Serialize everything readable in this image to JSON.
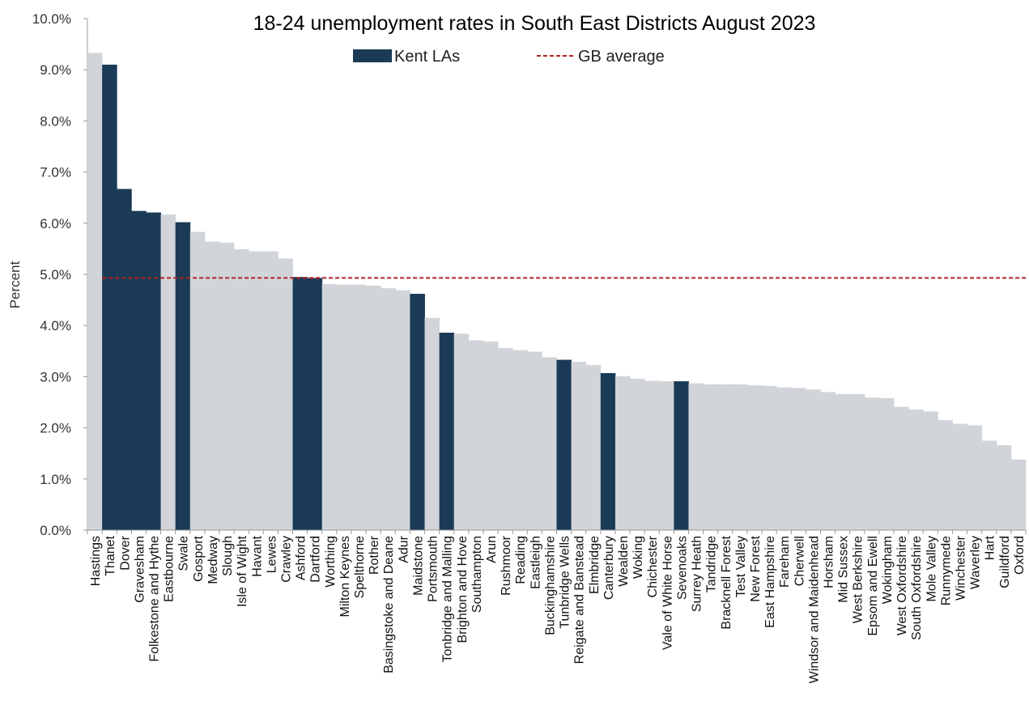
{
  "chart_data": {
    "type": "bar",
    "title": "18-24 unemployment rates in South East Districts August 2023",
    "ylabel": "Percent",
    "xlabel": "",
    "ylim": [
      0,
      10
    ],
    "yticks": [
      "0.0%",
      "1.0%",
      "2.0%",
      "3.0%",
      "4.0%",
      "5.0%",
      "6.0%",
      "7.0%",
      "8.0%",
      "9.0%",
      "10.0%"
    ],
    "legend": {
      "position": "top-center",
      "kent_label": "Kent LAs",
      "gb_label": "GB average"
    },
    "colors": {
      "other": "#d1d5d9",
      "kent": "#1a3a56",
      "gb_line": "#b22222"
    },
    "gb_average": 4.93,
    "categories": [
      "Hastings",
      "Thanet",
      "Dover",
      "Gravesham",
      "Folkestone and Hythe",
      "Eastbourne",
      "Swale",
      "Gosport",
      "Medway",
      "Slough",
      "Isle of Wight",
      "Havant",
      "Lewes",
      "Crawley",
      "Ashford",
      "Dartford",
      "Worthing",
      "Milton Keynes",
      "Spelthorne",
      "Rother",
      "Basingstoke and Deane",
      "Adur",
      "Maidstone",
      "Portsmouth",
      "Tonbridge and Malling",
      "Brighton and Hove",
      "Southampton",
      "Arun",
      "Rushmoor",
      "Reading",
      "Eastleigh",
      "Buckinghamshire",
      "Tunbridge Wells",
      "Reigate and Banstead",
      "Elmbridge",
      "Canterbury",
      "Wealden",
      "Woking",
      "Chichester",
      "Vale of White Horse",
      "Sevenoaks",
      "Surrey Heath",
      "Tandridge",
      "Bracknell Forest",
      "Test Valley",
      "New Forest",
      "East Hampshire",
      "Fareham",
      "Cherwell",
      "Windsor and Maidenhead",
      "Horsham",
      "Mid Sussex",
      "West Berkshire",
      "Epsom and Ewell",
      "Wokingham",
      "West Oxfordshire",
      "South Oxfordshire",
      "Mole Valley",
      "Runnymede",
      "Winchester",
      "Waverley",
      "Hart",
      "Guildford",
      "Oxford"
    ],
    "values": [
      9.33,
      9.1,
      6.67,
      6.24,
      6.21,
      6.17,
      6.02,
      5.83,
      5.64,
      5.62,
      5.49,
      5.45,
      5.45,
      5.31,
      4.95,
      4.93,
      4.81,
      4.8,
      4.8,
      4.78,
      4.73,
      4.69,
      4.62,
      4.15,
      3.86,
      3.84,
      3.71,
      3.69,
      3.56,
      3.52,
      3.49,
      3.38,
      3.33,
      3.29,
      3.23,
      3.07,
      3.01,
      2.96,
      2.92,
      2.91,
      2.91,
      2.87,
      2.85,
      2.85,
      2.85,
      2.83,
      2.82,
      2.79,
      2.78,
      2.75,
      2.7,
      2.66,
      2.66,
      2.59,
      2.58,
      2.41,
      2.36,
      2.32,
      2.15,
      2.08,
      2.05,
      1.75,
      1.66,
      1.38
    ],
    "kent": [
      false,
      true,
      true,
      true,
      true,
      false,
      true,
      false,
      false,
      false,
      false,
      false,
      false,
      false,
      true,
      true,
      false,
      false,
      false,
      false,
      false,
      false,
      true,
      false,
      true,
      false,
      false,
      false,
      false,
      false,
      false,
      false,
      true,
      false,
      false,
      true,
      false,
      false,
      false,
      false,
      true,
      false,
      false,
      false,
      false,
      false,
      false,
      false,
      false,
      false,
      false,
      false,
      false,
      false,
      false,
      false,
      false,
      false,
      false,
      false,
      false,
      false,
      false,
      false
    ]
  }
}
